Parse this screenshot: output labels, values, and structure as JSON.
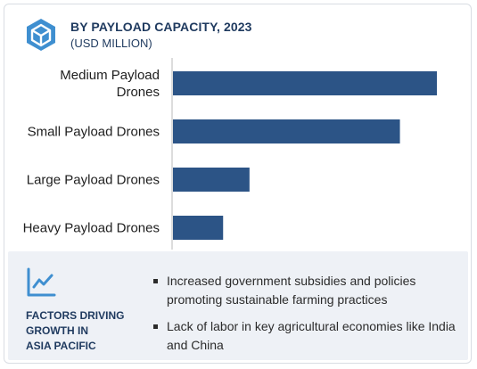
{
  "header": {
    "title": "BY PAYLOAD CAPACITY, 2023",
    "subtitle": "(USD MILLION)",
    "icon": "cube-icon"
  },
  "chart_data": {
    "type": "bar",
    "orientation": "horizontal",
    "categories": [
      [
        "Medium Payload",
        "Drones"
      ],
      [
        "Small Payload Drones"
      ],
      [
        "Large Payload Drones"
      ],
      [
        "Heavy Payload Drones"
      ]
    ],
    "values": [
      100,
      86,
      29,
      19
    ],
    "value_scale": "relative (no axis or data labels printed)",
    "bar_color": "#2c5486",
    "axis_line_color": "#b8b8b8",
    "grid": false,
    "legend": "none"
  },
  "factors": {
    "icon": "trend-line-icon",
    "title": "FACTORS DRIVING\nGROWTH IN\nASIA PACIFIC",
    "items": [
      "Increased government subsidies and policies promoting sustainable farming practices",
      "Lack of labor in key agricultural economies like India and China"
    ]
  },
  "colors": {
    "title": "#1f3a5f",
    "icon_accent": "#3f8fd0",
    "panel_bg": "#eef1f6"
  }
}
